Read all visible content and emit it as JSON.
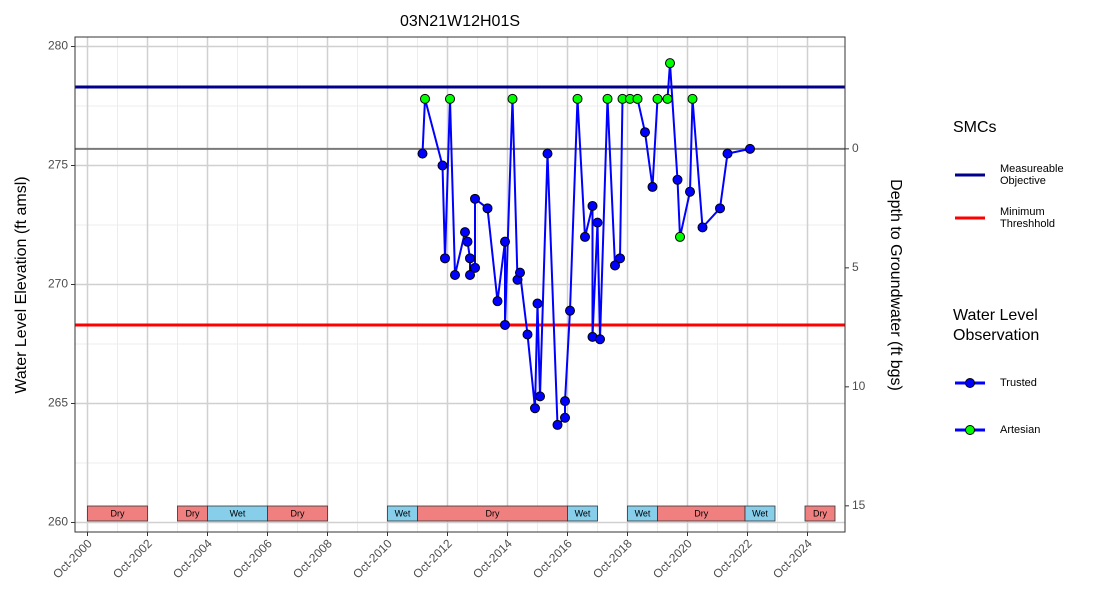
{
  "chart_data": {
    "type": "line",
    "title": "03N21W12H01S",
    "y_label": "Water Level Elevation (ft amsl)",
    "y2_label": "Depth to Groundwater (ft bgs)",
    "xlim": [
      "2000-05",
      "2026-01"
    ],
    "xticks": [
      {
        "value": "2000-10",
        "label": "Oct-2000"
      },
      {
        "value": "2002-10",
        "label": "Oct-2002"
      },
      {
        "value": "2004-10",
        "label": "Oct-2004"
      },
      {
        "value": "2006-10",
        "label": "Oct-2006"
      },
      {
        "value": "2008-10",
        "label": "Oct-2008"
      },
      {
        "value": "2010-10",
        "label": "Oct-2010"
      },
      {
        "value": "2012-10",
        "label": "Oct-2012"
      },
      {
        "value": "2014-10",
        "label": "Oct-2014"
      },
      {
        "value": "2016-10",
        "label": "Oct-2016"
      },
      {
        "value": "2018-10",
        "label": "Oct-2018"
      },
      {
        "value": "2020-10",
        "label": "Oct-2020"
      },
      {
        "value": "2022-10",
        "label": "Oct-2022"
      },
      {
        "value": "2024-10",
        "label": "Oct-2024"
      }
    ],
    "ylim": [
      259.6,
      280.4
    ],
    "yticks": [
      260,
      265,
      270,
      275,
      280
    ],
    "y2lim": [
      16.1,
      -4.7
    ],
    "y2ticks": [
      0,
      5,
      10,
      15
    ],
    "grid": true,
    "minor_grid": true,
    "y2_zero_line": true,
    "line_color": "#0000ff",
    "legend_titles": [
      "SMCs",
      "Water Level Observation"
    ],
    "references": [
      {
        "name": "Measureable Objective",
        "value": 278.3,
        "color": "#00008b"
      },
      {
        "name": "Minimum Threshhold",
        "value": 268.3,
        "color": "#ff0000"
      }
    ],
    "periods": [
      {
        "label": "Dry",
        "start": "2000-10",
        "end": "2002-10",
        "color": "#f08080"
      },
      {
        "label": "Dry",
        "start": "2003-10",
        "end": "2004-10",
        "color": "#f08080"
      },
      {
        "label": "Wet",
        "start": "2004-10",
        "end": "2006-10",
        "color": "#87ceeb"
      },
      {
        "label": "Dry",
        "start": "2006-10",
        "end": "2008-10",
        "color": "#f08080"
      },
      {
        "label": "Wet",
        "start": "2010-10",
        "end": "2011-10",
        "color": "#87ceeb"
      },
      {
        "label": "Dry",
        "start": "2011-10",
        "end": "2016-10",
        "color": "#f08080"
      },
      {
        "label": "Wet",
        "start": "2016-10",
        "end": "2017-10",
        "color": "#87ceeb"
      },
      {
        "label": "Wet",
        "start": "2018-10",
        "end": "2019-10",
        "color": "#87ceeb"
      },
      {
        "label": "Dry",
        "start": "2019-10",
        "end": "2022-09",
        "color": "#f08080"
      },
      {
        "label": "Wet",
        "start": "2022-09",
        "end": "2023-09",
        "color": "#87ceeb"
      },
      {
        "label": "Dry",
        "start": "2024-09",
        "end": "2025-09",
        "color": "#f08080"
      }
    ],
    "x": [
      "2011-12",
      "2012-01",
      "2012-08",
      "2012-09",
      "2012-11",
      "2013-01",
      "2013-05",
      "2013-06",
      "2013-07",
      "2013-07",
      "2013-09",
      "2013-09",
      "2014-02",
      "2014-06",
      "2014-09",
      "2014-09",
      "2014-12",
      "2015-02",
      "2015-03",
      "2015-06",
      "2015-09",
      "2015-10",
      "2015-11",
      "2016-02",
      "2016-06",
      "2016-09",
      "2016-09",
      "2016-11",
      "2017-02",
      "2017-05",
      "2017-08",
      "2017-08",
      "2017-10",
      "2017-11",
      "2018-02",
      "2018-05",
      "2018-07",
      "2018-08",
      "2018-11",
      "2019-02",
      "2019-05",
      "2019-08",
      "2019-10",
      "2020-02",
      "2020-03",
      "2020-06",
      "2020-07",
      "2020-11",
      "2020-12",
      "2021-04",
      "2021-11",
      "2022-02",
      "2022-11"
    ],
    "series": [
      {
        "name": "Trusted",
        "color": "#0000ff",
        "values": [
          275.5,
          null,
          275.0,
          271.1,
          null,
          270.4,
          272.2,
          271.8,
          271.1,
          270.4,
          270.7,
          273.6,
          273.2,
          269.3,
          271.8,
          268.3,
          null,
          270.2,
          270.5,
          267.9,
          264.8,
          269.2,
          265.3,
          275.5,
          264.1,
          264.4,
          265.1,
          268.9,
          null,
          272.0,
          273.3,
          267.8,
          272.6,
          267.7,
          null,
          270.8,
          271.1,
          null,
          null,
          null,
          276.4,
          274.1,
          null,
          null,
          null,
          274.4,
          null,
          273.9,
          null,
          272.4,
          273.2,
          275.5,
          275.7
        ]
      },
      {
        "name": "Artesian",
        "color": "#00ff00",
        "values": [
          null,
          277.8,
          null,
          null,
          277.8,
          null,
          null,
          null,
          null,
          null,
          null,
          null,
          null,
          null,
          null,
          null,
          277.8,
          null,
          null,
          null,
          null,
          null,
          null,
          null,
          null,
          null,
          null,
          null,
          277.8,
          null,
          null,
          null,
          null,
          null,
          277.8,
          null,
          null,
          277.8,
          277.8,
          277.8,
          null,
          null,
          277.8,
          277.8,
          279.3,
          null,
          272.0,
          null,
          277.8,
          null,
          null,
          null,
          null
        ]
      }
    ]
  }
}
